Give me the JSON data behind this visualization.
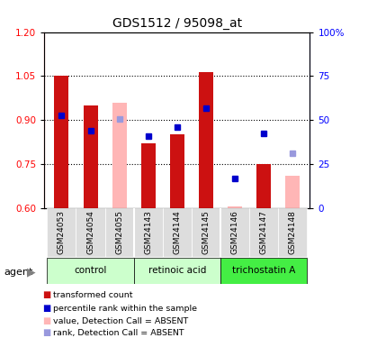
{
  "title": "GDS1512 / 95098_at",
  "samples": [
    "GSM24053",
    "GSM24054",
    "GSM24055",
    "GSM24143",
    "GSM24144",
    "GSM24145",
    "GSM24146",
    "GSM24147",
    "GSM24148"
  ],
  "bar_values": [
    1.05,
    0.95,
    null,
    0.82,
    0.85,
    1.065,
    0.605,
    0.75,
    null
  ],
  "bar_absent_values": [
    null,
    null,
    0.96,
    null,
    null,
    null,
    0.605,
    null,
    0.71
  ],
  "blue_dot_values": [
    0.915,
    0.865,
    null,
    0.845,
    0.875,
    0.94,
    0.7,
    0.855,
    null
  ],
  "blue_absent_dot_values": [
    null,
    null,
    0.905,
    null,
    null,
    null,
    null,
    null,
    0.785
  ],
  "ylim": [
    0.6,
    1.2
  ],
  "y2lim": [
    0,
    100
  ],
  "bar_color": "#CC1111",
  "bar_absent_color": "#FFB6B6",
  "dot_color": "#0000CC",
  "dot_absent_color": "#9999DD",
  "yticks_left": [
    0.6,
    0.75,
    0.9,
    1.05,
    1.2
  ],
  "yticks_right": [
    0,
    25,
    50,
    75,
    100
  ],
  "bar_width": 0.5,
  "group_defs": [
    {
      "name": "control",
      "start": 0,
      "end": 2,
      "color": "#CCFFCC"
    },
    {
      "name": "retinoic acid",
      "start": 3,
      "end": 5,
      "color": "#CCFFCC"
    },
    {
      "name": "trichostatin A",
      "start": 6,
      "end": 8,
      "color": "#44EE44"
    }
  ],
  "legend_items": [
    {
      "label": "transformed count",
      "color": "#CC1111"
    },
    {
      "label": "percentile rank within the sample",
      "color": "#0000CC"
    },
    {
      "label": "value, Detection Call = ABSENT",
      "color": "#FFB6B6"
    },
    {
      "label": "rank, Detection Call = ABSENT",
      "color": "#9999DD"
    }
  ]
}
